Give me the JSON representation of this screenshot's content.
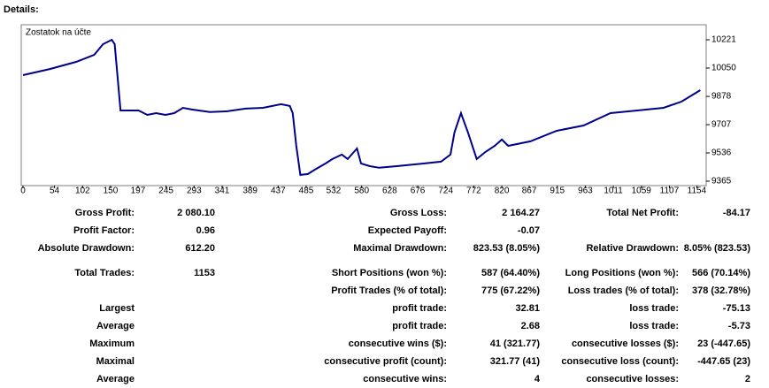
{
  "header": {
    "title": "Details:"
  },
  "chart_data": {
    "type": "line",
    "series": [
      {
        "name": "Zostatok na účte",
        "color": "#00008b",
        "x": [
          0,
          46,
          91,
          122,
          137,
          152,
          157,
          167,
          183,
          198,
          213,
          228,
          244,
          259,
          274,
          289,
          320,
          350,
          381,
          411,
          442,
          457,
          462,
          468,
          475,
          488,
          500,
          518,
          530,
          546,
          556,
          572,
          579,
          594,
          610,
          640,
          686,
          716,
          732,
          739,
          750,
          762,
          777,
          792,
          808,
          820,
          831,
          869,
          914,
          960,
          1006,
          1052,
          1097,
          1128,
          1160
        ],
        "values": [
          10007,
          10044,
          10087,
          10130,
          10194,
          10221,
          10194,
          9793,
          9793,
          9793,
          9766,
          9777,
          9766,
          9777,
          9809,
          9799,
          9783,
          9788,
          9804,
          9809,
          9831,
          9820,
          9777,
          9579,
          9403,
          9408,
          9435,
          9472,
          9499,
          9526,
          9499,
          9563,
          9472,
          9456,
          9446,
          9456,
          9472,
          9483,
          9526,
          9660,
          9777,
          9660,
          9499,
          9542,
          9579,
          9617,
          9579,
          9606,
          9670,
          9702,
          9777,
          9793,
          9809,
          9847,
          9916
        ]
      }
    ],
    "xlim": [
      -3,
      1170
    ],
    "xticks": [
      0,
      54,
      102,
      150,
      197,
      245,
      293,
      341,
      389,
      437,
      485,
      532,
      580,
      628,
      676,
      724,
      772,
      820,
      867,
      915,
      963,
      1011,
      1059,
      1107,
      1154
    ],
    "ylim": [
      9338,
      10312
    ],
    "yticks": [
      9365,
      9536,
      9707,
      9878,
      10050,
      10221
    ]
  },
  "table": {
    "rows": [
      [
        "Gross Profit:",
        "2 080.10",
        "Gross Loss:",
        "2 164.27",
        "Total Net Profit:",
        "-84.17"
      ],
      [
        "Profit Factor:",
        "0.96",
        "Expected Payoff:",
        "-0.07",
        null,
        null
      ],
      [
        "Absolute Drawdown:",
        "612.20",
        "Maximal Drawdown:",
        "823.53 (8.05%)",
        "Relative Drawdown:",
        "8.05% (823.53)"
      ],
      [
        "Total Trades:",
        "1153",
        "Short Positions (won %):",
        "587 (64.40%)",
        "Long Positions (won %):",
        "566 (70.14%)"
      ],
      [
        null,
        null,
        "Profit Trades (% of total):",
        "775 (67.22%)",
        "Loss trades (% of total):",
        "378 (32.78%)"
      ],
      [
        "Largest",
        null,
        "profit trade:",
        "32.81",
        "loss trade:",
        "-75.13"
      ],
      [
        "Average",
        null,
        "profit trade:",
        "2.68",
        "loss trade:",
        "-5.73"
      ],
      [
        "Maximum",
        null,
        "consecutive wins ($):",
        "41 (321.77)",
        "consecutive losses ($):",
        "23 (-447.65)"
      ],
      [
        "Maximal",
        null,
        "consecutive profit (count):",
        "321.77 (41)",
        "consecutive loss (count):",
        "-447.65 (23)"
      ],
      [
        "Average",
        null,
        "consecutive wins:",
        "4",
        "consecutive losses:",
        "2"
      ]
    ]
  }
}
